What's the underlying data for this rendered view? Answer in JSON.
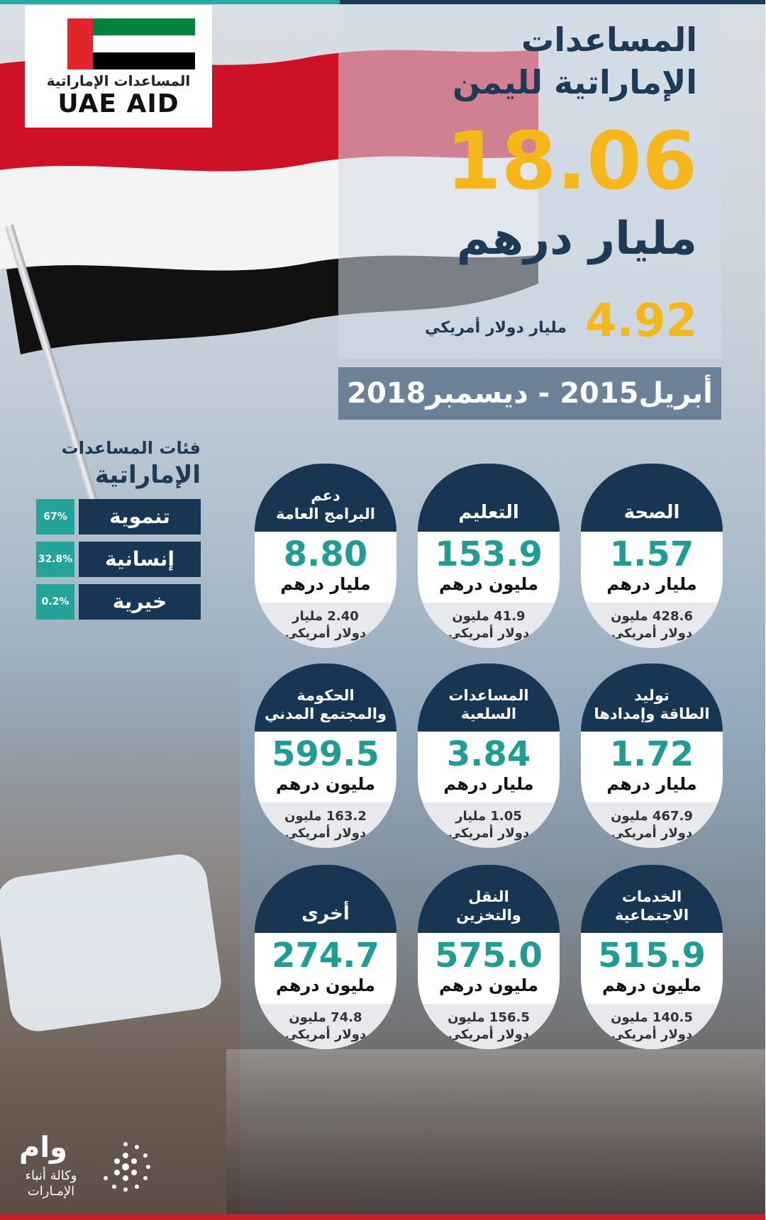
{
  "logo": {
    "arabic": "المساعدات الإماراتية",
    "english": "UAE AID"
  },
  "header": {
    "title_line1": "المساعدات",
    "title_line2": "الإماراتية لليمن",
    "total_aed": "18.06",
    "total_aed_unit": "مليار درهم",
    "total_usd": "4.92",
    "total_usd_unit": "مليار دولار أمريكي",
    "period": "أبريل2015 - ديسمبر2018"
  },
  "categories": {
    "title_line1": "فئات المساعدات",
    "title_line2": "الإماراتية",
    "items": [
      {
        "name": "تنموية",
        "pct": "67%"
      },
      {
        "name": "إنسانية",
        "pct": "32.8%"
      },
      {
        "name": "خيرية",
        "pct": "0.2%"
      }
    ]
  },
  "cards": [
    {
      "title": "الصحة",
      "value": "1.57",
      "unit": "مليار درهم",
      "usd_line1": "428.6 مليون",
      "usd_line2": "دولار أمريكي"
    },
    {
      "title": "التعليم",
      "value": "153.9",
      "unit": "مليون درهم",
      "usd_line1": "41.9 مليون",
      "usd_line2": "دولار أمريكي"
    },
    {
      "title": "دعم\nالبرامج العامة",
      "value": "8.80",
      "unit": "مليار درهم",
      "usd_line1": "2.40 مليار",
      "usd_line2": "دولار أمريكي"
    },
    {
      "title": "توليد\nالطاقة وإمدادها",
      "value": "1.72",
      "unit": "مليار درهم",
      "usd_line1": "467.9 مليون",
      "usd_line2": "دولار أمريكي"
    },
    {
      "title": "المساعدات\nالسلعية",
      "value": "3.84",
      "unit": "مليار درهم",
      "usd_line1": "1.05 مليار",
      "usd_line2": "دولار أمريكي"
    },
    {
      "title": "الحكومة\nوالمجتمع المدني",
      "value": "599.5",
      "unit": "مليون درهم",
      "usd_line1": "163.2 مليون",
      "usd_line2": "دولار أمريكي"
    },
    {
      "title": "الخدمات\nالاجتماعية",
      "value": "515.9",
      "unit": "مليون درهم",
      "usd_line1": "140.5 مليون",
      "usd_line2": "دولار أمريكي"
    },
    {
      "title": "النقل\nوالتخزين",
      "value": "575.0",
      "unit": "مليون درهم",
      "usd_line1": "156.5 مليون",
      "usd_line2": "دولار أمريكي"
    },
    {
      "title": "أخرى",
      "value": "274.7",
      "unit": "مليون درهم",
      "usd_line1": "74.8 مليون",
      "usd_line2": "دولار أمريكي"
    }
  ],
  "wam": {
    "mark": "وام",
    "agency": "وكالة أنباء الإمـارات"
  },
  "colors": {
    "navy": "#163653",
    "teal": "#22a49b",
    "gold": "#f6b71a",
    "yemen_red": "#ce1126",
    "yemen_black": "#000000"
  }
}
